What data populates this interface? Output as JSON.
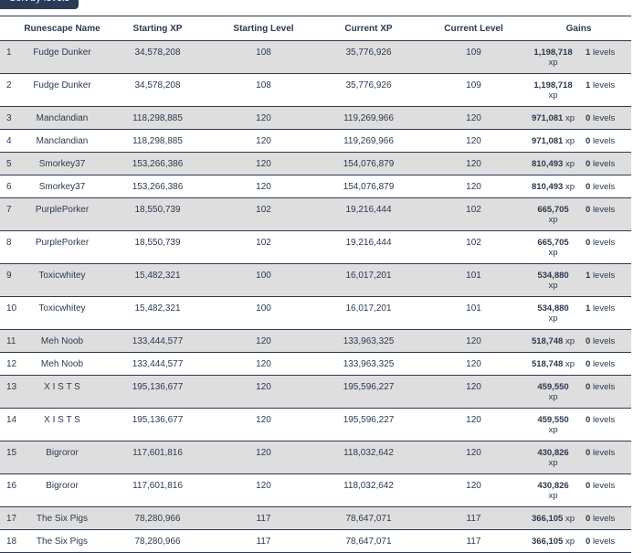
{
  "toolbar": {
    "sort_label": "Sort by levels"
  },
  "table": {
    "headers": {
      "rank": "",
      "name": "Runescape Name",
      "start_xp": "Starting XP",
      "start_level": "Starting Level",
      "current_xp": "Current XP",
      "current_level": "Current Level",
      "gains": "Gains"
    },
    "level_suffix": "levels",
    "xp_suffix": "xp",
    "rows": [
      {
        "rank": "1",
        "name": "Fudge Dunker",
        "start_xp": "34,578,208",
        "start_level": "108",
        "current_xp": "35,776,926",
        "current_level": "109",
        "gain_xp": "1,198,718",
        "gain_levels": "1",
        "wrap": true
      },
      {
        "rank": "2",
        "name": "Fudge Dunker",
        "start_xp": "34,578,208",
        "start_level": "108",
        "current_xp": "35,776,926",
        "current_level": "109",
        "gain_xp": "1,198,718",
        "gain_levels": "1",
        "wrap": true
      },
      {
        "rank": "3",
        "name": "Manclandian",
        "start_xp": "118,298,885",
        "start_level": "120",
        "current_xp": "119,269,966",
        "current_level": "120",
        "gain_xp": "971,081",
        "gain_levels": "0",
        "wrap": false
      },
      {
        "rank": "4",
        "name": "Manclandian",
        "start_xp": "118,298,885",
        "start_level": "120",
        "current_xp": "119,269,966",
        "current_level": "120",
        "gain_xp": "971,081",
        "gain_levels": "0",
        "wrap": false
      },
      {
        "rank": "5",
        "name": "Smorkey37",
        "start_xp": "153,266,386",
        "start_level": "120",
        "current_xp": "154,076,879",
        "current_level": "120",
        "gain_xp": "810,493",
        "gain_levels": "0",
        "wrap": false
      },
      {
        "rank": "6",
        "name": "Smorkey37",
        "start_xp": "153,266,386",
        "start_level": "120",
        "current_xp": "154,076,879",
        "current_level": "120",
        "gain_xp": "810,493",
        "gain_levels": "0",
        "wrap": false
      },
      {
        "rank": "7",
        "name": "PurplePorker",
        "start_xp": "18,550,739",
        "start_level": "102",
        "current_xp": "19,216,444",
        "current_level": "102",
        "gain_xp": "665,705",
        "gain_levels": "0",
        "wrap": true
      },
      {
        "rank": "8",
        "name": "PurplePorker",
        "start_xp": "18,550,739",
        "start_level": "102",
        "current_xp": "19,216,444",
        "current_level": "102",
        "gain_xp": "665,705",
        "gain_levels": "0",
        "wrap": true
      },
      {
        "rank": "9",
        "name": "Toxicwhitey",
        "start_xp": "15,482,321",
        "start_level": "100",
        "current_xp": "16,017,201",
        "current_level": "101",
        "gain_xp": "534,880",
        "gain_levels": "1",
        "wrap": true
      },
      {
        "rank": "10",
        "name": "Toxicwhitey",
        "start_xp": "15,482,321",
        "start_level": "100",
        "current_xp": "16,017,201",
        "current_level": "101",
        "gain_xp": "534,880",
        "gain_levels": "1",
        "wrap": true
      },
      {
        "rank": "11",
        "name": "Meh Noob",
        "start_xp": "133,444,577",
        "start_level": "120",
        "current_xp": "133,963,325",
        "current_level": "120",
        "gain_xp": "518,748",
        "gain_levels": "0",
        "wrap": false
      },
      {
        "rank": "12",
        "name": "Meh Noob",
        "start_xp": "133,444,577",
        "start_level": "120",
        "current_xp": "133,963,325",
        "current_level": "120",
        "gain_xp": "518,748",
        "gain_levels": "0",
        "wrap": false
      },
      {
        "rank": "13",
        "name": "X I S T S",
        "start_xp": "195,136,677",
        "start_level": "120",
        "current_xp": "195,596,227",
        "current_level": "120",
        "gain_xp": "459,550",
        "gain_levels": "0",
        "wrap": true
      },
      {
        "rank": "14",
        "name": "X I S T S",
        "start_xp": "195,136,677",
        "start_level": "120",
        "current_xp": "195,596,227",
        "current_level": "120",
        "gain_xp": "459,550",
        "gain_levels": "0",
        "wrap": true
      },
      {
        "rank": "15",
        "name": "Bigroror",
        "start_xp": "117,601,816",
        "start_level": "120",
        "current_xp": "118,032,642",
        "current_level": "120",
        "gain_xp": "430,826",
        "gain_levels": "0",
        "wrap": true
      },
      {
        "rank": "16",
        "name": "Bigroror",
        "start_xp": "117,601,816",
        "start_level": "120",
        "current_xp": "118,032,642",
        "current_level": "120",
        "gain_xp": "430,826",
        "gain_levels": "0",
        "wrap": true
      },
      {
        "rank": "17",
        "name": "The Six Pigs",
        "start_xp": "78,280,966",
        "start_level": "117",
        "current_xp": "78,647,071",
        "current_level": "117",
        "gain_xp": "366,105",
        "gain_levels": "0",
        "wrap": false
      },
      {
        "rank": "18",
        "name": "The Six Pigs",
        "start_xp": "78,280,966",
        "start_level": "117",
        "current_xp": "78,647,071",
        "current_level": "117",
        "gain_xp": "366,105",
        "gain_levels": "0",
        "wrap": false
      }
    ]
  }
}
